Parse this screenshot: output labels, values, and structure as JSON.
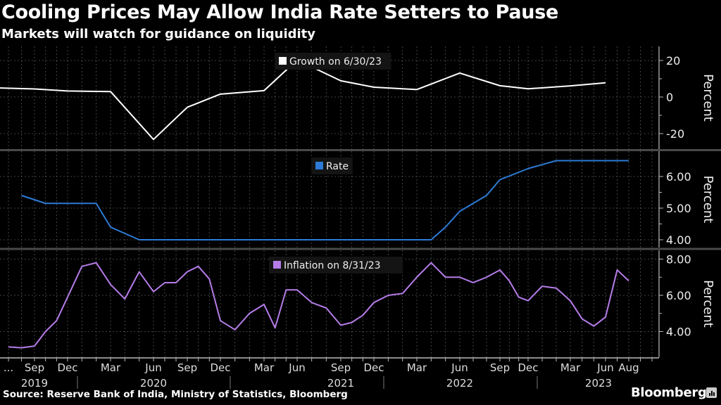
{
  "header": {
    "title": "Cooling Prices May Allow India Rate Setters to Pause",
    "subtitle": "Markets will watch for guidance on liquidity"
  },
  "footer": {
    "source": "Source: Reserve Bank of India, Ministry of Statistics, Bloomberg",
    "brand": "Bloomberg"
  },
  "colors": {
    "background": "#000000",
    "growth": "#ffffff",
    "rate": "#2d7bd6",
    "inflation": "#b57ce8",
    "grid": "#555555",
    "axis": "#bbbbbb"
  },
  "chart_data": [
    {
      "type": "line",
      "panel": "top",
      "legend": "Growth on 6/30/23",
      "legend_placement": "top-center",
      "ylabel": "Percent",
      "yticks": [
        "20",
        "0",
        "-20"
      ],
      "ytick_values": [
        20,
        0,
        -20
      ],
      "ylim": [
        -27,
        30
      ],
      "grid": true,
      "series": [
        {
          "name": "Growth",
          "x": [
            "Jun 2019",
            "Sep 2019",
            "Dec 2019",
            "Mar 2020",
            "Jun 2020",
            "Sep 2020",
            "Dec 2020",
            "Mar 2021",
            "Jun 2021",
            "Sep 2021",
            "Dec 2021",
            "Mar 2022",
            "Jun 2022",
            "Sep 2022",
            "Dec 2022",
            "Mar 2023",
            "Jun 2023"
          ],
          "values": [
            5.0,
            4.4,
            3.3,
            3.0,
            -23.2,
            -5.6,
            1.6,
            3.5,
            20.3,
            8.9,
            5.4,
            4.1,
            13.1,
            6.2,
            4.5,
            6.1,
            7.8
          ]
        }
      ]
    },
    {
      "type": "line",
      "panel": "middle",
      "legend": "Rate",
      "legend_placement": "top-center",
      "ylabel": "Percent",
      "yticks": [
        "6.00",
        "5.00",
        "4.00"
      ],
      "ytick_values": [
        6.0,
        5.0,
        4.0
      ],
      "ylim": [
        3.75,
        6.75
      ],
      "grid": true,
      "series": [
        {
          "name": "Rate",
          "x": [
            "Aug 2019",
            "Oct 2019",
            "Feb 2020",
            "Mar 2020",
            "May 2020",
            "Apr 2022",
            "May 2022",
            "Jun 2022",
            "Aug 2022",
            "Sep 2022",
            "Dec 2022",
            "Feb 2023",
            "Aug 2023"
          ],
          "values": [
            5.4,
            5.15,
            5.15,
            4.4,
            4.0,
            4.0,
            4.4,
            4.9,
            5.4,
            5.9,
            6.25,
            6.5,
            6.5
          ]
        }
      ]
    },
    {
      "type": "line",
      "panel": "bottom",
      "legend": "Inflation on 8/31/23",
      "legend_placement": "top-center",
      "ylabel": "Percent",
      "yticks": [
        "8.00",
        "6.00",
        "4.00"
      ],
      "ytick_values": [
        8.0,
        6.0,
        4.0
      ],
      "ylim": [
        2.8,
        8.4
      ],
      "grid": true,
      "series": [
        {
          "name": "Inflation",
          "x": [
            "Jul 2019",
            "Aug 2019",
            "Sep 2019",
            "Oct 2019",
            "Nov 2019",
            "Dec 2019",
            "Jan 2020",
            "Feb 2020",
            "Mar 2020",
            "Apr 2020",
            "May 2020",
            "Jun 2020",
            "Jul 2020",
            "Aug 2020",
            "Sep 2020",
            "Oct 2020",
            "Nov 2020",
            "Dec 2020",
            "Jan 2021",
            "Feb 2021",
            "Mar 2021",
            "Apr 2021",
            "May 2021",
            "Jun 2021",
            "Jul 2021",
            "Aug 2021",
            "Sep 2021",
            "Oct 2021",
            "Nov 2021",
            "Dec 2021",
            "Jan 2022",
            "Feb 2022",
            "Mar 2022",
            "Apr 2022",
            "May 2022",
            "Jun 2022",
            "Jul 2022",
            "Aug 2022",
            "Sep 2022",
            "Oct 2022",
            "Nov 2022",
            "Dec 2022",
            "Jan 2023",
            "Feb 2023",
            "Mar 2023",
            "Apr 2023",
            "May 2023",
            "Jun 2023",
            "Jul 2023",
            "Aug 2023"
          ],
          "values": [
            3.15,
            3.1,
            3.2,
            4.0,
            4.6,
            5.9,
            7.6,
            7.8,
            6.6,
            5.8,
            7.3,
            6.2,
            6.7,
            6.7,
            7.3,
            7.6,
            6.9,
            4.6,
            4.1,
            5.0,
            5.5,
            4.2,
            6.3,
            6.3,
            5.6,
            5.3,
            4.35,
            4.5,
            4.9,
            5.6,
            6.0,
            6.1,
            7.0,
            7.8,
            7.0,
            7.0,
            6.7,
            7.0,
            7.4,
            6.8,
            5.9,
            5.7,
            6.5,
            6.4,
            5.7,
            4.7,
            4.3,
            4.8,
            7.4,
            6.8
          ]
        }
      ]
    }
  ],
  "xaxis": {
    "month_labels": [
      "...",
      "Sep",
      "Dec",
      "Mar",
      "Jun",
      "Sep",
      "Dec",
      "Mar",
      "Jun",
      "Sep",
      "Dec",
      "Mar",
      "Jun",
      "Sep",
      "Dec",
      "Mar",
      "Jun",
      "Aug"
    ],
    "year_labels": [
      "2019",
      "2020",
      "2021",
      "2022",
      "2023"
    ]
  }
}
